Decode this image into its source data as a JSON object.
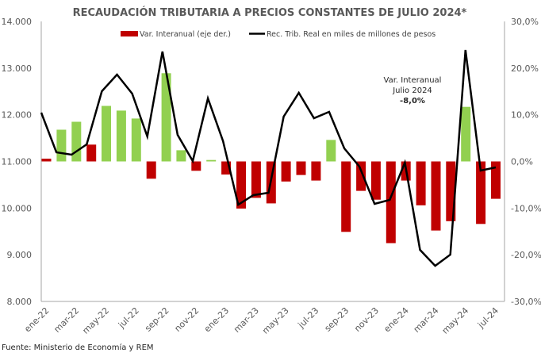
{
  "chart_data": {
    "type": "bar+line",
    "title": "RECAUDACIÓN TRIBUTARIA A PRECIOS CONSTANTES DE JULIO 2024*",
    "source": "Fuente: Ministerio de Economía y REM",
    "categories": [
      "ene-22",
      "feb-22",
      "mar-22",
      "abr-22",
      "may-22",
      "jun-22",
      "jul-22",
      "ago-22",
      "sep-22",
      "oct-22",
      "nov-22",
      "dic-22",
      "ene-23",
      "feb-23",
      "mar-23",
      "abr-23",
      "may-23",
      "jun-23",
      "jul-23",
      "ago-23",
      "sep-23",
      "oct-23",
      "nov-23",
      "dic-23",
      "ene-24",
      "feb-24",
      "mar-24",
      "abr-24",
      "may-24",
      "jun-24",
      "jul-24"
    ],
    "x_tick_labels": [
      "ene-22",
      "mar-22",
      "may-22",
      "jul-22",
      "sep-22",
      "nov-22",
      "ene-23",
      "mar-23",
      "may-23",
      "jul-23",
      "sep-23",
      "nov-23",
      "ene-24",
      "mar-24",
      "may-24",
      "jul-24"
    ],
    "series": [
      {
        "name": "Var. Interanual (eje der.)",
        "type": "bar",
        "axis": "right",
        "unit": "%",
        "values": [
          0.6,
          6.8,
          8.5,
          3.6,
          11.9,
          10.9,
          9.2,
          -3.7,
          18.9,
          2.4,
          -2.0,
          0.3,
          -2.8,
          -10.1,
          -7.8,
          -9.0,
          -4.3,
          -2.9,
          -4.1,
          4.6,
          -15.1,
          -6.3,
          -8.2,
          -17.5,
          -4.1,
          -9.4,
          -14.8,
          -12.8,
          11.7,
          -13.4,
          -8.0
        ],
        "colors": [
          "#C00000",
          "#92D050",
          "#92D050",
          "#C00000",
          "#92D050",
          "#92D050",
          "#92D050",
          "#C00000",
          "#92D050",
          "#92D050",
          "#C00000",
          "#92D050",
          "#C00000",
          "#C00000",
          "#C00000",
          "#C00000",
          "#C00000",
          "#C00000",
          "#C00000",
          "#92D050",
          "#C00000",
          "#C00000",
          "#C00000",
          "#C00000",
          "#C00000",
          "#C00000",
          "#C00000",
          "#C00000",
          "#92D050",
          "#C00000",
          "#C00000"
        ]
      },
      {
        "name": "Rec. Trib. Real en miles de millones de pesos",
        "type": "line",
        "axis": "left",
        "color": "#000000",
        "values": [
          12045,
          11195,
          11144,
          11365,
          12504,
          12861,
          12453,
          11535,
          13354,
          11569,
          11008,
          12351,
          11433,
          10073,
          10277,
          10328,
          11960,
          12470,
          11926,
          12062,
          11280,
          10889,
          10090,
          10175,
          10974,
          9104,
          8764,
          9002,
          13388,
          10804,
          10872
        ]
      }
    ],
    "y_left": {
      "min": 8000,
      "max": 14000,
      "step": 1000,
      "tick_labels": [
        "8.000",
        "9.000",
        "10.000",
        "11.000",
        "12.000",
        "13.000",
        "14.000"
      ]
    },
    "y_right": {
      "min": -30,
      "max": 30,
      "step": 10,
      "tick_labels": [
        "-30,0%",
        "-20,0%",
        "-10,0%",
        "0,0%",
        "10,0%",
        "20,0%",
        "30,0%"
      ]
    },
    "legend": {
      "position": "top",
      "entries": [
        {
          "label": "Var. Interanual (eje der.)",
          "color": "#C00000",
          "shape": "bar"
        },
        {
          "label": "Rec. Trib. Real en miles de millones de pesos",
          "color": "#000000",
          "shape": "line"
        }
      ]
    },
    "annotation": {
      "lines": [
        "Var. Interanual",
        "Julio 2024",
        "-8,0%"
      ]
    },
    "grid": false,
    "colors": {
      "negative_bar": "#C00000",
      "positive_bar": "#92D050",
      "line": "#000000",
      "axis": "#A6A6A6",
      "text": "#595959"
    }
  }
}
